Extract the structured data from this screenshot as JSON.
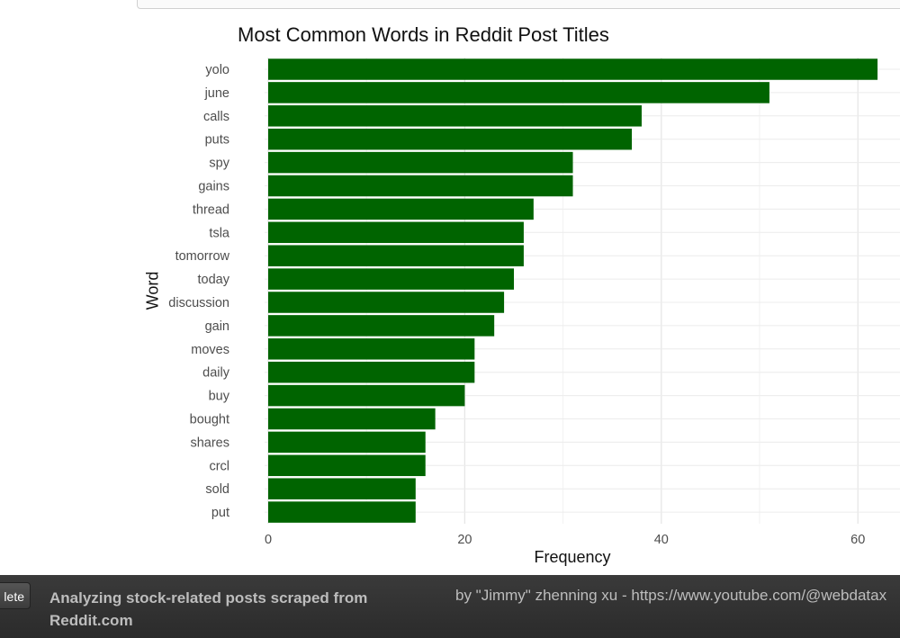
{
  "chart_data": {
    "type": "bar",
    "orientation": "horizontal",
    "title": "Most Common Words in Reddit Post Titles",
    "xlabel": "Frequency",
    "ylabel": "Word",
    "categories": [
      "yolo",
      "june",
      "calls",
      "puts",
      "spy",
      "gains",
      "thread",
      "tsla",
      "tomorrow",
      "today",
      "discussion",
      "gain",
      "moves",
      "daily",
      "buy",
      "bought",
      "shares",
      "crcl",
      "sold",
      "put"
    ],
    "values": [
      62,
      51,
      38,
      37,
      31,
      31,
      27,
      26,
      26,
      25,
      24,
      23,
      21,
      21,
      20,
      17,
      16,
      16,
      15,
      15
    ],
    "xlim": [
      0,
      64
    ],
    "xticks": [
      0,
      20,
      40,
      60
    ],
    "grid": true,
    "bar_color": "#006400"
  },
  "footer": {
    "button_label": "lete",
    "caption": "Analyzing stock-related posts scraped from Reddit.com",
    "credit": "by \"Jimmy\" zhenning xu - https://www.youtube.com/@webdatax"
  }
}
